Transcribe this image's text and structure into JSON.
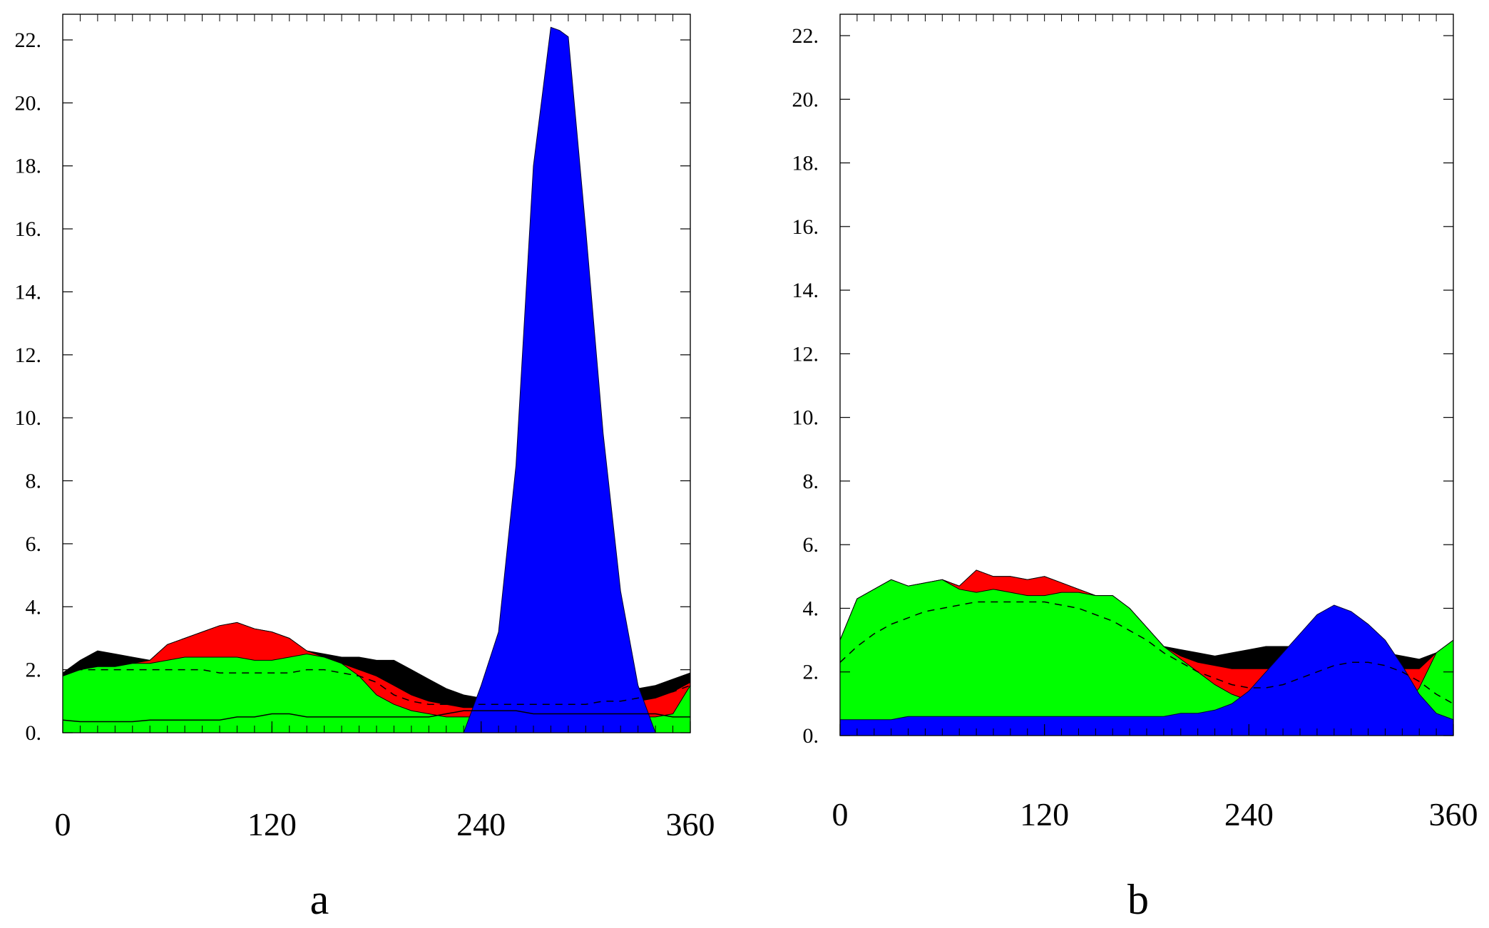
{
  "chart_data": [
    {
      "type": "area",
      "panel_label": "a",
      "xlim": [
        0,
        360
      ],
      "ylim": [
        0,
        22
      ],
      "x_ticks": [
        "0",
        "120",
        "240",
        "360"
      ],
      "y_ticks": [
        "0.",
        "2.",
        "4.",
        "6.",
        "8.",
        "10.",
        "12.",
        "14.",
        "16.",
        "18.",
        "20.",
        "22."
      ],
      "grid": false,
      "legend": "none",
      "x": [
        0,
        10,
        20,
        30,
        40,
        50,
        60,
        70,
        80,
        90,
        100,
        110,
        120,
        130,
        140,
        150,
        160,
        170,
        180,
        190,
        200,
        210,
        220,
        230,
        240,
        250,
        260,
        270,
        280,
        285,
        290,
        300,
        310,
        320,
        330,
        340,
        350,
        360
      ],
      "series": [
        {
          "color": "#00ff00",
          "values": [
            1.8,
            2.0,
            2.1,
            2.1,
            2.2,
            2.2,
            2.3,
            2.4,
            2.4,
            2.4,
            2.4,
            2.3,
            2.3,
            2.4,
            2.5,
            2.4,
            2.2,
            1.8,
            1.2,
            0.9,
            0.7,
            0.6,
            0.5,
            0.5,
            0.5,
            0.5,
            0.4,
            0.4,
            0.4,
            0.4,
            0.4,
            0.4,
            0.4,
            0.4,
            0.5,
            0.5,
            0.6,
            1.5
          ]
        },
        {
          "color": "#ff0000",
          "values": [
            1.8,
            2.0,
            2.1,
            2.1,
            2.2,
            2.3,
            2.8,
            3.0,
            3.2,
            3.4,
            3.5,
            3.3,
            3.2,
            3.0,
            2.6,
            2.4,
            2.2,
            2.0,
            1.8,
            1.5,
            1.2,
            1.0,
            0.9,
            0.8,
            0.8,
            0.8,
            0.8,
            0.8,
            0.8,
            0.8,
            0.8,
            0.8,
            0.9,
            0.9,
            1.0,
            1.1,
            1.3,
            1.6
          ]
        },
        {
          "color": "#000000",
          "values": [
            1.9,
            2.3,
            2.6,
            2.5,
            2.4,
            2.3,
            2.8,
            3.0,
            3.2,
            3.4,
            3.5,
            3.3,
            3.2,
            3.0,
            2.6,
            2.5,
            2.4,
            2.4,
            2.3,
            2.3,
            2.0,
            1.7,
            1.4,
            1.2,
            1.1,
            1.0,
            1.0,
            1.0,
            1.0,
            1.0,
            1.0,
            1.1,
            1.2,
            1.3,
            1.4,
            1.5,
            1.7,
            1.9
          ]
        },
        {
          "color": "#0000ff",
          "values": [
            0,
            0,
            0,
            0,
            0,
            0,
            0,
            0,
            0,
            0,
            0,
            0,
            0,
            0,
            0,
            0,
            0,
            0,
            0,
            0,
            0,
            0,
            0,
            0,
            1.5,
            3.2,
            8.5,
            18.0,
            22.4,
            22.3,
            22.1,
            16.0,
            9.5,
            4.5,
            1.5,
            0,
            0,
            0
          ]
        }
      ],
      "dashed_line": [
        1.9,
        2.0,
        2.0,
        2.0,
        2.0,
        2.0,
        2.0,
        2.0,
        2.0,
        1.9,
        1.9,
        1.9,
        1.9,
        1.9,
        2.0,
        2.0,
        1.9,
        1.8,
        1.6,
        1.2,
        1.0,
        0.9,
        0.9,
        0.9,
        0.9,
        0.9,
        0.9,
        0.9,
        0.9,
        0.9,
        0.9,
        0.9,
        1.0,
        1.0,
        1.1,
        1.2,
        1.3,
        1.5
      ],
      "solid_line": [
        0.4,
        0.35,
        0.35,
        0.35,
        0.35,
        0.4,
        0.4,
        0.4,
        0.4,
        0.4,
        0.5,
        0.5,
        0.6,
        0.6,
        0.5,
        0.5,
        0.5,
        0.5,
        0.5,
        0.5,
        0.5,
        0.5,
        0.6,
        0.7,
        0.7,
        0.7,
        0.7,
        0.6,
        0.6,
        0.6,
        0.6,
        0.6,
        0.6,
        0.6,
        0.6,
        0.6,
        0.5,
        0.5
      ]
    },
    {
      "type": "area",
      "panel_label": "b",
      "xlim": [
        0,
        360
      ],
      "ylim": [
        0,
        22
      ],
      "x_ticks": [
        "0",
        "120",
        "240",
        "360"
      ],
      "y_ticks": [
        "0.",
        "2.",
        "4.",
        "6.",
        "8.",
        "10.",
        "12.",
        "14.",
        "16.",
        "18.",
        "20.",
        "22."
      ],
      "grid": false,
      "legend": "none",
      "x": [
        0,
        10,
        20,
        30,
        40,
        50,
        60,
        70,
        80,
        90,
        100,
        110,
        120,
        130,
        140,
        150,
        160,
        170,
        180,
        190,
        200,
        210,
        220,
        230,
        240,
        250,
        260,
        270,
        280,
        290,
        300,
        310,
        320,
        330,
        340,
        350,
        360
      ],
      "series": [
        {
          "color": "#00ff00",
          "values": [
            3.0,
            4.3,
            4.6,
            4.9,
            4.7,
            4.8,
            4.9,
            4.6,
            4.5,
            4.6,
            4.5,
            4.4,
            4.4,
            4.5,
            4.5,
            4.4,
            4.4,
            4.0,
            3.4,
            2.8,
            2.4,
            2.0,
            1.6,
            1.3,
            1.1,
            1.0,
            0.9,
            0.8,
            0.8,
            0.8,
            0.8,
            0.8,
            0.8,
            0.8,
            1.5,
            2.6,
            3.0
          ]
        },
        {
          "color": "#ff0000",
          "values": [
            3.0,
            4.3,
            4.6,
            4.9,
            4.7,
            4.8,
            4.9,
            4.7,
            5.2,
            5.0,
            5.0,
            4.9,
            5.0,
            4.8,
            4.6,
            4.4,
            4.4,
            4.0,
            3.4,
            2.8,
            2.5,
            2.3,
            2.2,
            2.1,
            2.1,
            2.1,
            2.1,
            2.1,
            2.1,
            2.1,
            2.1,
            2.1,
            2.1,
            2.1,
            2.1,
            2.6,
            3.0
          ]
        },
        {
          "color": "#000000",
          "values": [
            3.0,
            4.3,
            4.6,
            4.9,
            4.7,
            4.8,
            4.9,
            4.7,
            5.2,
            5.0,
            5.0,
            4.9,
            5.0,
            4.8,
            4.6,
            4.4,
            4.4,
            4.0,
            3.4,
            2.8,
            2.7,
            2.6,
            2.5,
            2.6,
            2.7,
            2.8,
            2.8,
            2.8,
            2.9,
            2.8,
            2.8,
            2.7,
            2.6,
            2.5,
            2.4,
            2.6,
            3.0
          ]
        },
        {
          "color": "#0000ff",
          "values": [
            0.5,
            0.5,
            0.5,
            0.5,
            0.6,
            0.6,
            0.6,
            0.6,
            0.6,
            0.6,
            0.6,
            0.6,
            0.6,
            0.6,
            0.6,
            0.6,
            0.6,
            0.6,
            0.6,
            0.6,
            0.7,
            0.7,
            0.8,
            1.0,
            1.4,
            2.0,
            2.6,
            3.2,
            3.8,
            4.1,
            3.9,
            3.5,
            3.0,
            2.2,
            1.3,
            0.7,
            0.5
          ]
        }
      ],
      "dashed_line": [
        2.3,
        2.8,
        3.2,
        3.5,
        3.7,
        3.9,
        4.0,
        4.1,
        4.2,
        4.2,
        4.2,
        4.2,
        4.2,
        4.1,
        4.0,
        3.8,
        3.6,
        3.3,
        3.0,
        2.6,
        2.3,
        2.0,
        1.8,
        1.6,
        1.5,
        1.5,
        1.6,
        1.8,
        2.0,
        2.2,
        2.3,
        2.3,
        2.2,
        2.0,
        1.7,
        1.3,
        1.0
      ]
    }
  ]
}
